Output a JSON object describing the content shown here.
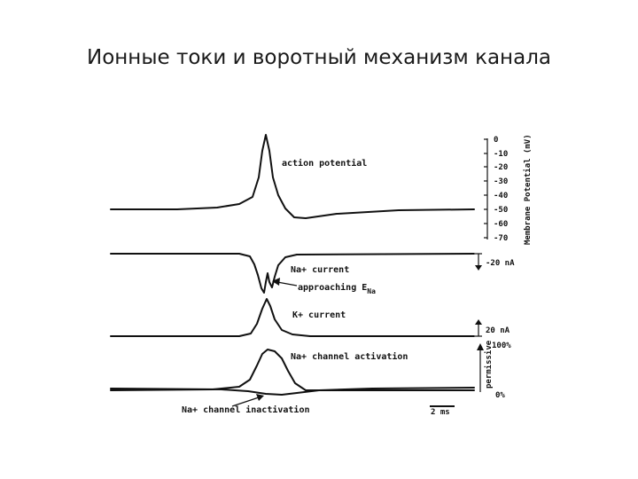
{
  "slide": {
    "title": "Ионные токи и воротный механизм канала"
  },
  "figure": {
    "labels": {
      "action_potential": "action potential",
      "na_current": "Na+ current",
      "approaching": "approaching E",
      "approaching_sub": "Na",
      "k_current": "K+ current",
      "na_activation": "Na+ channel activation",
      "na_inactivation": "Na+ channel inactivation"
    },
    "membrane_axis": {
      "title": "Membrane Potential (mV)",
      "ticks": [
        "0",
        "-10",
        "-20",
        "-30",
        "-40",
        "-50",
        "-60",
        "-70"
      ]
    },
    "scale_bars": {
      "na_current": "-20 nA",
      "k_current": "20 nA",
      "time": "2 ms"
    },
    "permissive_axis": {
      "title": "permissive",
      "top": "100%",
      "bottom": "0%"
    }
  }
}
